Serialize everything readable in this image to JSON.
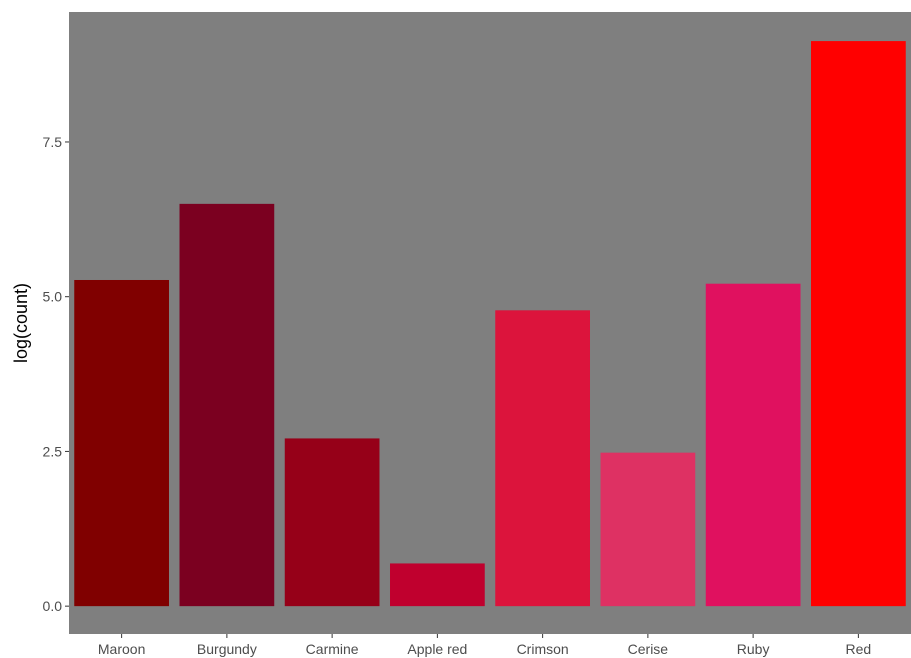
{
  "chart_data": {
    "type": "bar",
    "title": "",
    "xlabel": "",
    "ylabel": "log(count)",
    "categories": [
      "Maroon",
      "Burgundy",
      "Carmine",
      "Apple red",
      "Crimson",
      "Cerise",
      "Ruby",
      "Red"
    ],
    "values": [
      5.27,
      6.5,
      2.71,
      0.69,
      4.78,
      2.48,
      5.21,
      9.13
    ],
    "colors": [
      "#800000",
      "#7B0020",
      "#960018",
      "#C0002E",
      "#DC143C",
      "#DE3163",
      "#E0115F",
      "#FF0000"
    ],
    "ylim": [
      -0.45,
      9.6
    ],
    "yticks": [
      0.0,
      2.5,
      5.0,
      7.5
    ],
    "ytick_labels": [
      "0.0",
      "2.5",
      "5.0",
      "7.5"
    ],
    "panel_background": "#7F7F7F",
    "grid": false,
    "legend": "none"
  }
}
